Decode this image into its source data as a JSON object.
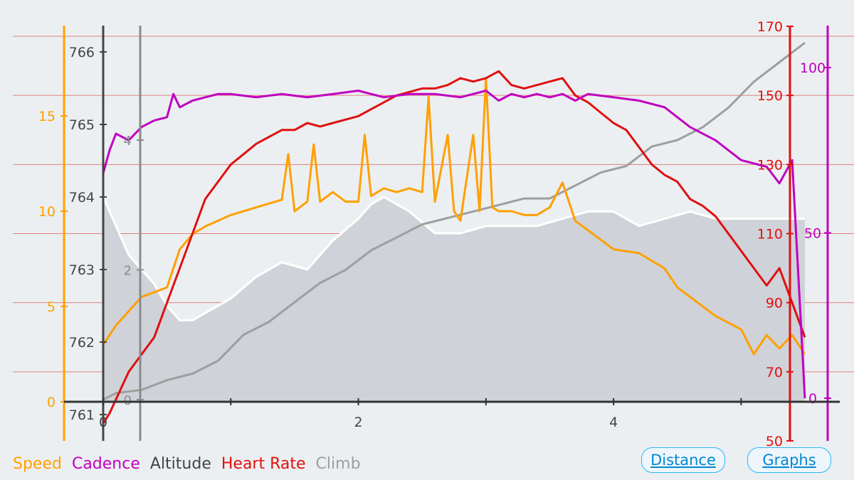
{
  "legend": {
    "speed": "Speed",
    "cadence": "Cadence",
    "altitude": "Altitude",
    "heart_rate": "Heart Rate",
    "climb": "Climb"
  },
  "buttons": {
    "distance": "Distance",
    "graphs": "Graphs"
  },
  "colors": {
    "speed": "#ffa000",
    "cadence": "#c000c0",
    "altitude": "#444444",
    "heart_rate": "#e01010",
    "climb": "#9e9e9e",
    "grid": "#e08080",
    "background": "#eceff1",
    "button": "#0288d1"
  },
  "chart_data": {
    "type": "line",
    "x_axis": {
      "label": "",
      "ticks": [
        "0",
        "2",
        "4"
      ],
      "range": [
        0,
        5.55
      ]
    },
    "axes": {
      "altitude": {
        "ticks": [
          "761",
          "762",
          "763",
          "764",
          "765",
          "766"
        ],
        "range": [
          761,
          766
        ]
      },
      "climb": {
        "ticks": [
          "0",
          "2",
          "4"
        ],
        "range": [
          0,
          5.5
        ]
      },
      "speed": {
        "ticks": [
          "0",
          "5",
          "10",
          "15"
        ],
        "range": [
          0,
          15
        ]
      },
      "heart_rate": {
        "ticks": [
          "50",
          "70",
          "90",
          "110",
          "130",
          "150",
          "170"
        ],
        "range": [
          50,
          170
        ]
      },
      "cadence": {
        "ticks": [
          "0",
          "50",
          "100"
        ],
        "range": [
          0,
          100
        ]
      }
    },
    "series": [
      {
        "name": "Altitude",
        "axis": "altitude",
        "filled": true,
        "x": [
          0,
          0.05,
          0.1,
          0.2,
          0.3,
          0.4,
          0.5,
          0.6,
          0.7,
          0.8,
          1.0,
          1.2,
          1.4,
          1.6,
          1.8,
          2.0,
          2.1,
          2.2,
          2.3,
          2.4,
          2.6,
          2.8,
          3.0,
          3.2,
          3.4,
          3.6,
          3.8,
          4.0,
          4.2,
          4.4,
          4.6,
          4.8,
          5.0,
          5.5
        ],
        "y": [
          764.0,
          763.8,
          763.6,
          763.2,
          763.0,
          762.8,
          762.5,
          762.3,
          762.3,
          762.4,
          762.6,
          762.9,
          763.1,
          763.0,
          763.4,
          763.7,
          763.9,
          764.0,
          763.9,
          763.8,
          763.5,
          763.5,
          763.6,
          763.6,
          763.6,
          763.7,
          763.8,
          763.8,
          763.6,
          763.7,
          763.8,
          763.7,
          763.7,
          763.7
        ]
      },
      {
        "name": "Climb",
        "axis": "climb",
        "x": [
          0,
          0.1,
          0.3,
          0.5,
          0.7,
          0.9,
          1.1,
          1.3,
          1.5,
          1.7,
          1.9,
          2.1,
          2.3,
          2.5,
          2.7,
          2.9,
          3.1,
          3.3,
          3.5,
          3.7,
          3.9,
          4.1,
          4.3,
          4.5,
          4.7,
          4.9,
          5.1,
          5.3,
          5.5
        ],
        "y": [
          0,
          0.1,
          0.15,
          0.3,
          0.4,
          0.6,
          1.0,
          1.2,
          1.5,
          1.8,
          2.0,
          2.3,
          2.5,
          2.7,
          2.8,
          2.9,
          3.0,
          3.1,
          3.1,
          3.3,
          3.5,
          3.6,
          3.9,
          4.0,
          4.2,
          4.5,
          4.9,
          5.2,
          5.5
        ]
      },
      {
        "name": "Speed",
        "axis": "speed",
        "x": [
          0,
          0.1,
          0.3,
          0.5,
          0.6,
          0.7,
          0.8,
          1.0,
          1.2,
          1.4,
          1.45,
          1.5,
          1.6,
          1.65,
          1.7,
          1.8,
          1.9,
          2.0,
          2.05,
          2.1,
          2.2,
          2.3,
          2.4,
          2.5,
          2.55,
          2.6,
          2.7,
          2.75,
          2.8,
          2.9,
          2.95,
          3.0,
          3.05,
          3.1,
          3.2,
          3.3,
          3.4,
          3.5,
          3.6,
          3.7,
          3.8,
          3.9,
          4.0,
          4.2,
          4.4,
          4.5,
          4.6,
          4.7,
          4.8,
          5.0,
          5.1,
          5.2,
          5.3,
          5.4,
          5.5
        ],
        "y": [
          3.0,
          4.0,
          5.5,
          6.0,
          8.0,
          8.8,
          9.2,
          9.8,
          10.2,
          10.6,
          13.0,
          10.0,
          10.5,
          13.5,
          10.5,
          11.0,
          10.5,
          10.5,
          14.0,
          10.8,
          11.2,
          11.0,
          11.2,
          11.0,
          16.0,
          10.5,
          14.0,
          10.0,
          9.5,
          14.0,
          10.0,
          17.0,
          10.2,
          10.0,
          10.0,
          9.8,
          9.8,
          10.2,
          11.5,
          9.5,
          9.0,
          8.5,
          8.0,
          7.8,
          7.0,
          6.0,
          5.5,
          5.0,
          4.5,
          3.8,
          2.5,
          3.5,
          2.8,
          3.5,
          2.5
        ]
      },
      {
        "name": "Heart Rate",
        "axis": "heart_rate",
        "x": [
          0,
          0.05,
          0.1,
          0.2,
          0.3,
          0.4,
          0.5,
          0.6,
          0.7,
          0.8,
          0.9,
          1.0,
          1.1,
          1.2,
          1.3,
          1.4,
          1.5,
          1.6,
          1.7,
          1.8,
          1.9,
          2.0,
          2.1,
          2.2,
          2.3,
          2.4,
          2.5,
          2.6,
          2.7,
          2.8,
          2.9,
          3.0,
          3.1,
          3.2,
          3.3,
          3.4,
          3.5,
          3.6,
          3.7,
          3.8,
          3.9,
          4.0,
          4.1,
          4.2,
          4.3,
          4.4,
          4.5,
          4.6,
          4.7,
          4.8,
          4.9,
          5.0,
          5.1,
          5.2,
          5.3,
          5.4,
          5.5
        ],
        "y": [
          55,
          58,
          62,
          70,
          75,
          80,
          90,
          100,
          110,
          120,
          125,
          130,
          133,
          136,
          138,
          140,
          140,
          142,
          141,
          142,
          143,
          144,
          146,
          148,
          150,
          151,
          152,
          152,
          153,
          155,
          154,
          155,
          157,
          153,
          152,
          153,
          154,
          155,
          150,
          148,
          145,
          142,
          140,
          135,
          130,
          127,
          125,
          120,
          118,
          115,
          110,
          105,
          100,
          95,
          100,
          90,
          80
        ]
      },
      {
        "name": "Cadence",
        "axis": "cadence",
        "x": [
          0,
          0.05,
          0.1,
          0.2,
          0.3,
          0.4,
          0.5,
          0.55,
          0.6,
          0.7,
          0.8,
          0.9,
          1.0,
          1.2,
          1.4,
          1.6,
          1.8,
          2.0,
          2.2,
          2.4,
          2.6,
          2.8,
          3.0,
          3.1,
          3.2,
          3.3,
          3.4,
          3.5,
          3.6,
          3.7,
          3.8,
          4.0,
          4.2,
          4.4,
          4.6,
          4.8,
          5.0,
          5.2,
          5.3,
          5.4,
          5.5
        ],
        "y": [
          68,
          75,
          80,
          78,
          82,
          84,
          85,
          92,
          88,
          90,
          91,
          92,
          92,
          91,
          92,
          91,
          92,
          93,
          91,
          92,
          92,
          91,
          93,
          90,
          92,
          91,
          92,
          91,
          92,
          90,
          92,
          91,
          90,
          88,
          82,
          78,
          72,
          70,
          65,
          72,
          0
        ]
      }
    ]
  }
}
